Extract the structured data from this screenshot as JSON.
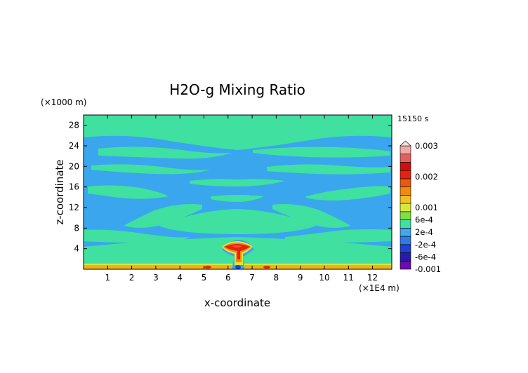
{
  "chart_data": {
    "type": "heatmap",
    "title": "H2O-g Mixing Ratio",
    "xlabel": "x-coordinate",
    "ylabel": "z-coordinate",
    "x_unit": "(×1E4 m)",
    "y_unit": "(×1000 m)",
    "time_label": "15150 s",
    "xlim": [
      0,
      12.8
    ],
    "ylim": [
      0,
      30
    ],
    "x_ticks": [
      "1",
      "2",
      "3",
      "4",
      "5",
      "6",
      "7",
      "8",
      "9",
      "10",
      "11",
      "12"
    ],
    "y_ticks": [
      "4",
      "8",
      "12",
      "16",
      "20",
      "24",
      "28"
    ],
    "colorbar": {
      "labels": [
        "0.003",
        "0.002",
        "0.001",
        "6e-4",
        "2e-4",
        "-2e-4",
        "-6e-4",
        "-0.001"
      ],
      "label_values": [
        0.003,
        0.002,
        0.001,
        0.0006,
        0.0002,
        -0.0002,
        -0.0006,
        -0.001
      ],
      "range": [
        -0.001,
        0.003
      ],
      "colors": [
        "#6a0dad",
        "#2a1aa8",
        "#1f3fd6",
        "#2e7be6",
        "#3fa8f0",
        "#40e0a0",
        "#7fe040",
        "#d8e83a",
        "#f0c020",
        "#f08a10",
        "#e85a10",
        "#e82010",
        "#cc1010",
        "#e06060",
        "#f0a8a8"
      ]
    },
    "features": {
      "background_level": -0.0001,
      "main_plume": {
        "x": 6.3,
        "z": 4.3,
        "value": 0.002
      },
      "surface_layer": {
        "z": [
          0,
          0.6
        ],
        "value": 0.0008
      }
    }
  }
}
